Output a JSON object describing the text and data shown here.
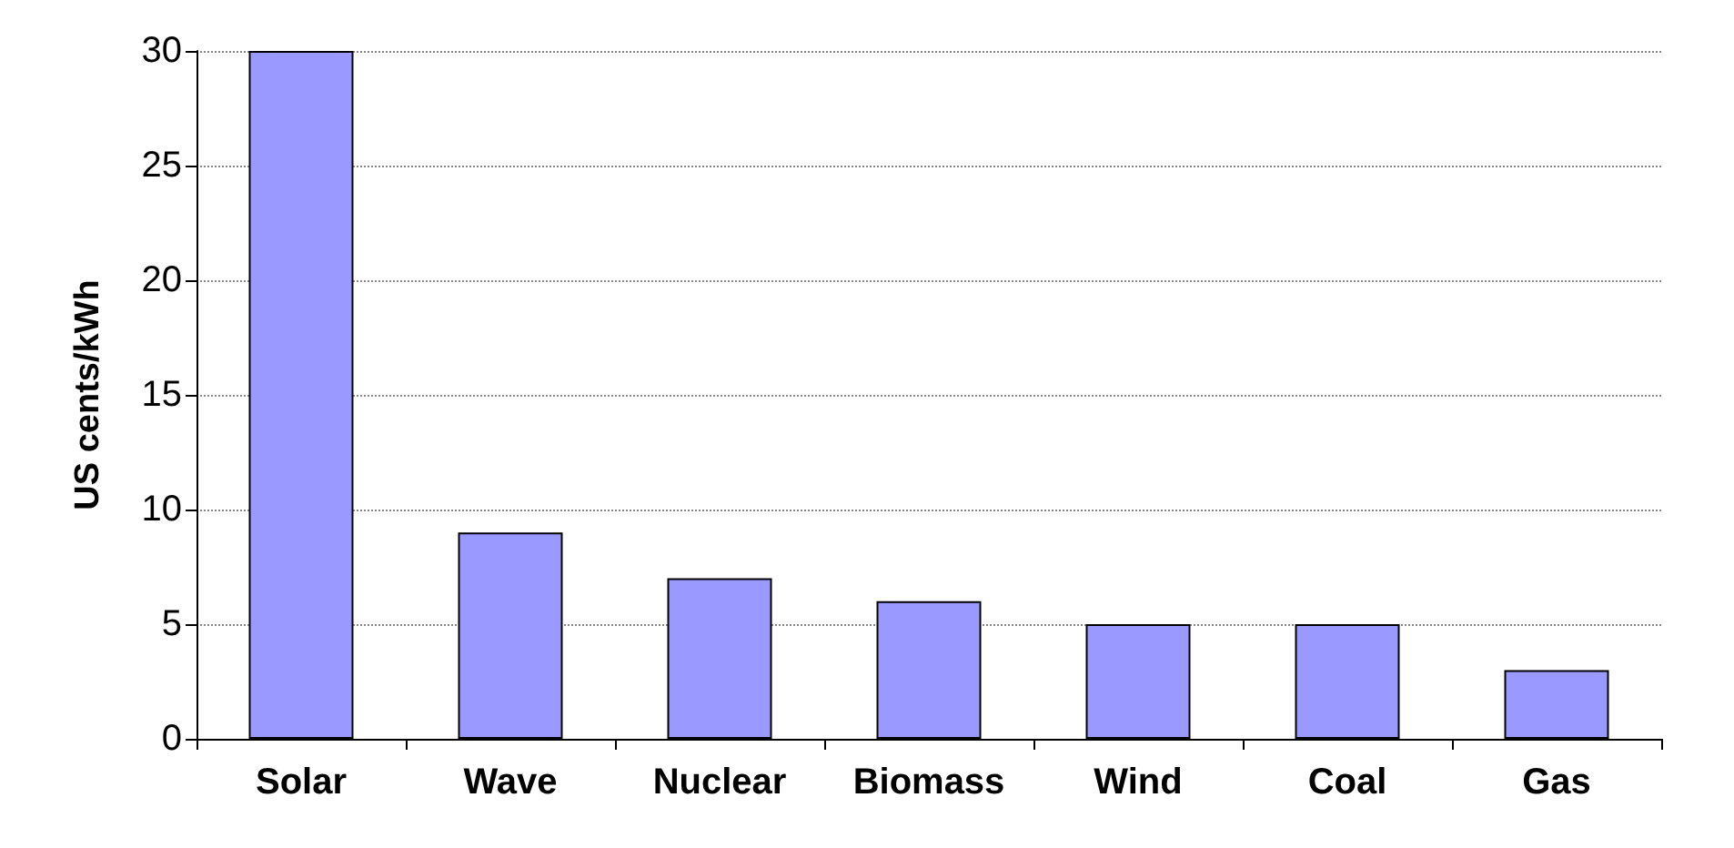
{
  "chart_data": {
    "type": "bar",
    "ylabel": "US cents/kWh",
    "categories": [
      "Solar",
      "Wave",
      "Nuclear",
      "Biomass",
      "Wind",
      "Coal",
      "Gas"
    ],
    "values": [
      30,
      9,
      7,
      6,
      5,
      5,
      3
    ],
    "color": "#9999ff",
    "ylim": [
      0,
      30
    ],
    "yticks": [
      0,
      5,
      10,
      15,
      20,
      25,
      30
    ],
    "grid": "y"
  }
}
